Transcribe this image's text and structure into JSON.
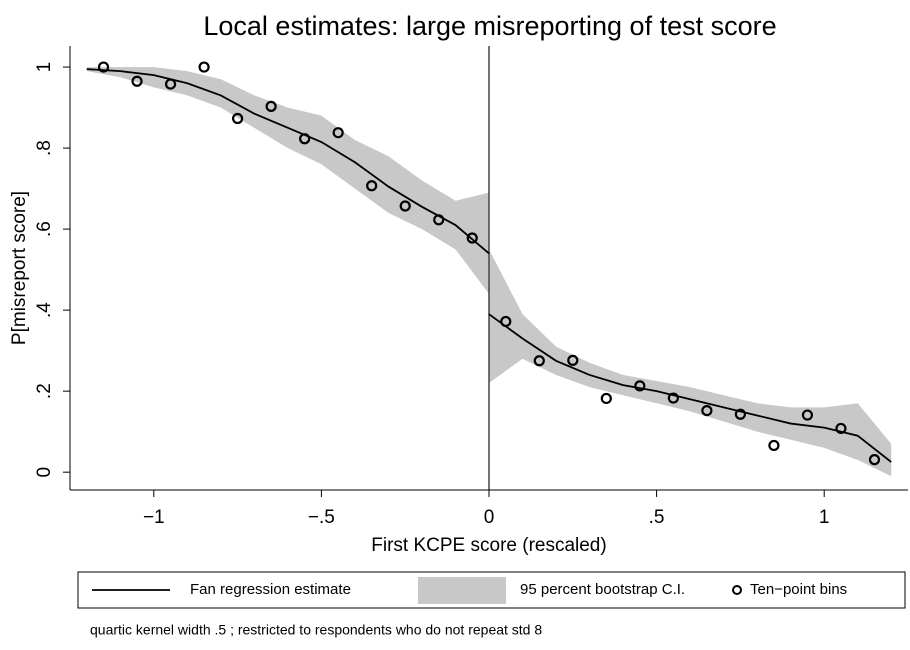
{
  "chart_data": {
    "type": "scatter",
    "title": "Local estimates: large misreporting of test score",
    "x_label": "First KCPE score (rescaled)",
    "y_label": "P[misreport score]",
    "note": "quartic kernel width .5 ; restricted to respondents who do not repeat std 8",
    "xlim": [
      -1.25,
      1.25
    ],
    "ylim": [
      -0.044,
      1.052
    ],
    "xticks": [
      {
        "value": -1,
        "label": "−1"
      },
      {
        "value": -0.5,
        "label": "−.5"
      },
      0,
      {
        "value": 0.5,
        "label": ".5"
      },
      1
    ],
    "yticks": [
      0,
      {
        "value": 0.2,
        "label": ".2"
      },
      {
        "value": 0.4,
        "label": ".4"
      },
      {
        "value": 0.6,
        "label": ".6"
      },
      {
        "value": 0.8,
        "label": ".8"
      },
      1
    ],
    "vline": 0,
    "band": {
      "name": "95 percent bootstrap C.I.",
      "color": "#c8c8c8",
      "segments": [
        {
          "x": [
            -1.2,
            -1.1,
            -1.0,
            -0.9,
            -0.8,
            -0.7,
            -0.6,
            -0.5,
            -0.4,
            -0.3,
            -0.2,
            -0.1,
            0
          ],
          "lower": [
            0.99,
            0.975,
            0.95,
            0.93,
            0.9,
            0.85,
            0.8,
            0.76,
            0.7,
            0.64,
            0.6,
            0.55,
            0.44
          ],
          "upper": [
            1.0,
            1.0,
            1.0,
            0.99,
            0.97,
            0.93,
            0.9,
            0.88,
            0.82,
            0.78,
            0.72,
            0.67,
            0.69
          ]
        },
        {
          "x": [
            0,
            0.1,
            0.2,
            0.3,
            0.4,
            0.5,
            0.6,
            0.7,
            0.8,
            0.9,
            1.0,
            1.1,
            1.2
          ],
          "lower": [
            0.22,
            0.28,
            0.24,
            0.21,
            0.19,
            0.17,
            0.15,
            0.125,
            0.1,
            0.08,
            0.06,
            0.03,
            -0.01
          ],
          "upper": [
            0.55,
            0.39,
            0.31,
            0.27,
            0.24,
            0.225,
            0.21,
            0.19,
            0.17,
            0.16,
            0.16,
            0.17,
            0.07
          ]
        }
      ]
    },
    "fit": {
      "name": "Fan regression estimate",
      "color": "#000000",
      "segments": [
        {
          "x": [
            -1.2,
            -1.1,
            -1.0,
            -0.9,
            -0.8,
            -0.7,
            -0.6,
            -0.5,
            -0.4,
            -0.3,
            -0.2,
            -0.1,
            0
          ],
          "values": [
            0.995,
            0.99,
            0.98,
            0.96,
            0.93,
            0.885,
            0.85,
            0.815,
            0.765,
            0.705,
            0.655,
            0.61,
            0.54
          ]
        },
        {
          "x": [
            0,
            0.1,
            0.2,
            0.3,
            0.4,
            0.5,
            0.6,
            0.7,
            0.8,
            0.9,
            1.0,
            1.1,
            1.2
          ],
          "values": [
            0.39,
            0.33,
            0.275,
            0.24,
            0.215,
            0.2,
            0.18,
            0.16,
            0.14,
            0.12,
            0.11,
            0.09,
            0.025
          ]
        }
      ]
    },
    "bins": {
      "name": "Ten−point bins",
      "color": "#000000",
      "x": [
        -1.15,
        -1.05,
        -0.95,
        -0.85,
        -0.75,
        -0.65,
        -0.55,
        -0.45,
        -0.35,
        -0.25,
        -0.15,
        -0.05,
        0.05,
        0.15,
        0.25,
        0.35,
        0.45,
        0.55,
        0.65,
        0.75,
        0.85,
        0.95,
        1.05,
        1.15
      ],
      "values": [
        1.0,
        0.965,
        0.958,
        1.0,
        0.873,
        0.903,
        0.823,
        0.838,
        0.707,
        0.657,
        0.623,
        0.578,
        0.372,
        0.275,
        0.276,
        0.182,
        0.213,
        0.183,
        0.152,
        0.143,
        0.066,
        0.141,
        0.108,
        0.031
      ]
    }
  }
}
